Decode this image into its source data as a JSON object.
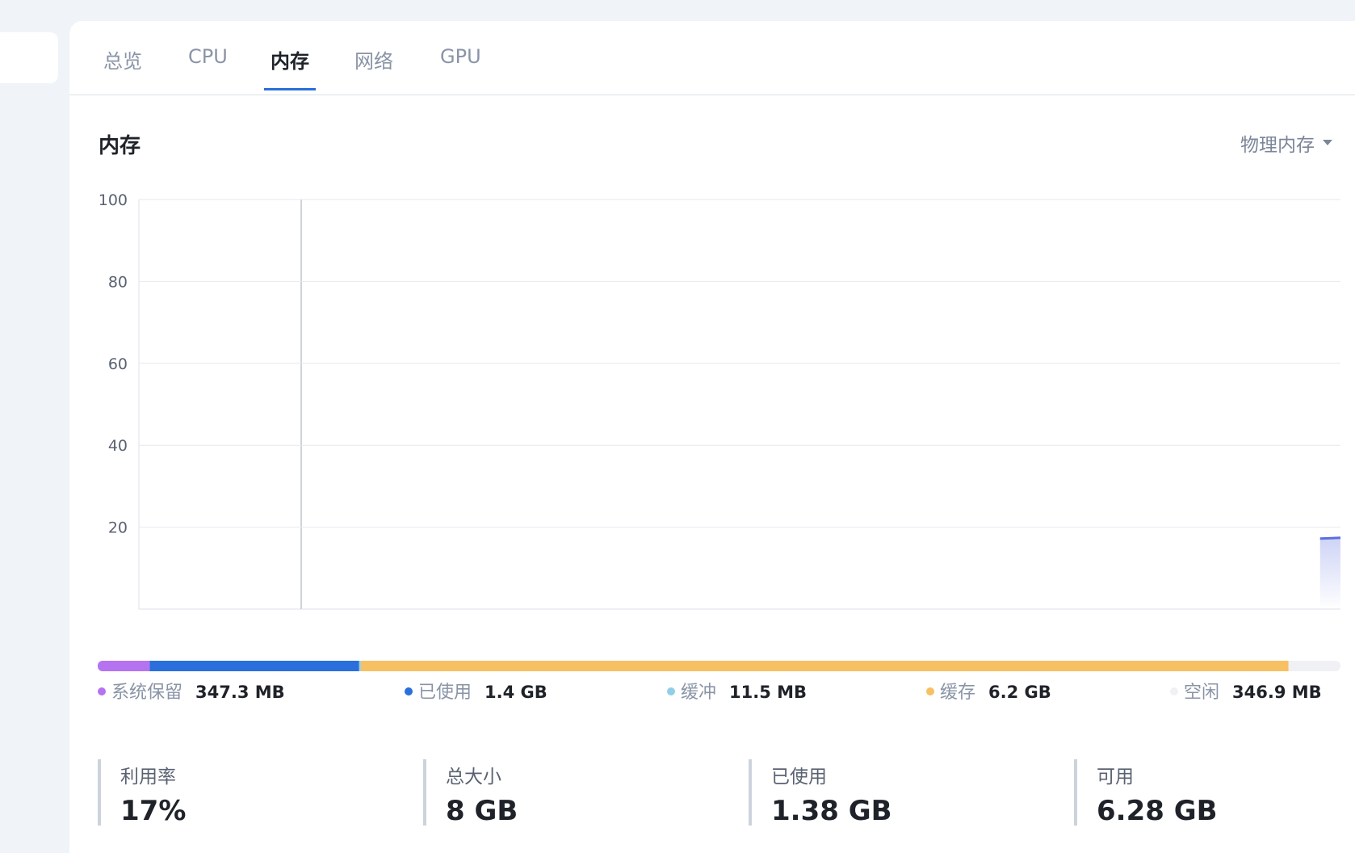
{
  "tabs": [
    "总览",
    "CPU",
    "内存",
    "网络",
    "GPU"
  ],
  "section_title": "内存",
  "dropdown": "物理内存",
  "chart_data": {
    "type": "area",
    "values": [
      null,
      null,
      null,
      null,
      null,
      null,
      null,
      null,
      null,
      null,
      null,
      null,
      null,
      null,
      null,
      null,
      null,
      null,
      null,
      null,
      null,
      null,
      null,
      null,
      null,
      null,
      null,
      null,
      null,
      null,
      null,
      null,
      null,
      null,
      null,
      null,
      null,
      null,
      null,
      null,
      null,
      null,
      null,
      null,
      null,
      null,
      null,
      null,
      null,
      null,
      null,
      null,
      null,
      null,
      null,
      null,
      null,
      null,
      17.2,
      17.4
    ],
    "color": "#5b6ee1",
    "ylim": [
      0,
      100
    ],
    "yticks": [
      20,
      40,
      60,
      80,
      100
    ],
    "grid": true
  },
  "memory_breakdown": {
    "type": "stacked-bar",
    "categories": [
      "系统保留",
      "已使用",
      "缓冲",
      "缓存",
      "空闲"
    ],
    "values": [
      347.3,
      1400,
      11.5,
      6200,
      346.9
    ],
    "value_labels": [
      "347.3 MB",
      "1.4 GB",
      "11.5 MB",
      "6.2 GB",
      "346.9 MB"
    ],
    "colors": [
      "#b573f0",
      "#2a6fdb",
      "#8fd0e8",
      "#f7c062",
      "#eff1f5"
    ]
  },
  "stats": [
    {
      "label": "利用率",
      "value": "17%"
    },
    {
      "label": "总大小",
      "value": "8 GB"
    },
    {
      "label": "已使用",
      "value": "1.38 GB"
    },
    {
      "label": "可用",
      "value": "6.28 GB"
    }
  ]
}
